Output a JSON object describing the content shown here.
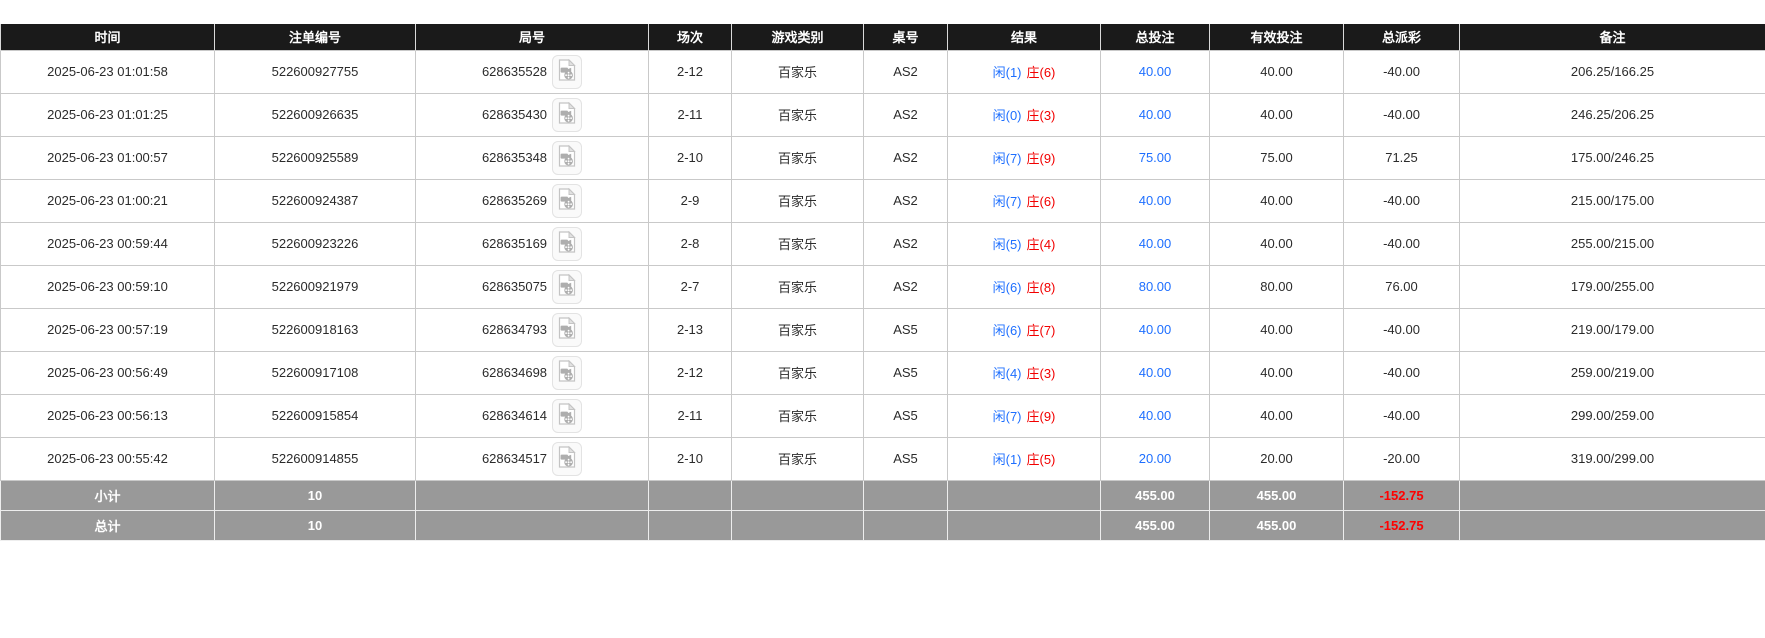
{
  "colors": {
    "header_bg": "#1a1a1a",
    "link_blue": "#1e6fff",
    "player_blue": "#1e6fff",
    "banker_red": "#f20000",
    "negative_red": "#f20000",
    "summary_bg": "#999999"
  },
  "icons": {
    "round_video": "video-file-icon"
  },
  "table": {
    "columns": [
      {
        "key": "time",
        "label": "时间"
      },
      {
        "key": "bet_id",
        "label": "注单编号"
      },
      {
        "key": "round_id",
        "label": "局号"
      },
      {
        "key": "session",
        "label": "场次"
      },
      {
        "key": "game_type",
        "label": "游戏类别"
      },
      {
        "key": "table_no",
        "label": "桌号"
      },
      {
        "key": "result",
        "label": "结果"
      },
      {
        "key": "total_bet",
        "label": "总投注"
      },
      {
        "key": "valid_bet",
        "label": "有效投注"
      },
      {
        "key": "total_payout",
        "label": "总派彩"
      },
      {
        "key": "remark",
        "label": "备注"
      }
    ],
    "rows": [
      {
        "time": "2025-06-23 01:01:58",
        "bet_id": "522600927755",
        "round_id": "628635528",
        "session": "2-12",
        "game_type": "百家乐",
        "table_no": "AS2",
        "result_player": "闲(1)",
        "result_banker": "庄(6)",
        "total_bet": "40.00",
        "valid_bet": "40.00",
        "total_payout": "-40.00",
        "remark": "206.25/166.25"
      },
      {
        "time": "2025-06-23 01:01:25",
        "bet_id": "522600926635",
        "round_id": "628635430",
        "session": "2-11",
        "game_type": "百家乐",
        "table_no": "AS2",
        "result_player": "闲(0)",
        "result_banker": "庄(3)",
        "total_bet": "40.00",
        "valid_bet": "40.00",
        "total_payout": "-40.00",
        "remark": "246.25/206.25"
      },
      {
        "time": "2025-06-23 01:00:57",
        "bet_id": "522600925589",
        "round_id": "628635348",
        "session": "2-10",
        "game_type": "百家乐",
        "table_no": "AS2",
        "result_player": "闲(7)",
        "result_banker": "庄(9)",
        "total_bet": "75.00",
        "valid_bet": "75.00",
        "total_payout": "71.25",
        "remark": "175.00/246.25"
      },
      {
        "time": "2025-06-23 01:00:21",
        "bet_id": "522600924387",
        "round_id": "628635269",
        "session": "2-9",
        "game_type": "百家乐",
        "table_no": "AS2",
        "result_player": "闲(7)",
        "result_banker": "庄(6)",
        "total_bet": "40.00",
        "valid_bet": "40.00",
        "total_payout": "-40.00",
        "remark": "215.00/175.00"
      },
      {
        "time": "2025-06-23 00:59:44",
        "bet_id": "522600923226",
        "round_id": "628635169",
        "session": "2-8",
        "game_type": "百家乐",
        "table_no": "AS2",
        "result_player": "闲(5)",
        "result_banker": "庄(4)",
        "total_bet": "40.00",
        "valid_bet": "40.00",
        "total_payout": "-40.00",
        "remark": "255.00/215.00"
      },
      {
        "time": "2025-06-23 00:59:10",
        "bet_id": "522600921979",
        "round_id": "628635075",
        "session": "2-7",
        "game_type": "百家乐",
        "table_no": "AS2",
        "result_player": "闲(6)",
        "result_banker": "庄(8)",
        "total_bet": "80.00",
        "valid_bet": "80.00",
        "total_payout": "76.00",
        "remark": "179.00/255.00"
      },
      {
        "time": "2025-06-23 00:57:19",
        "bet_id": "522600918163",
        "round_id": "628634793",
        "session": "2-13",
        "game_type": "百家乐",
        "table_no": "AS5",
        "result_player": "闲(6)",
        "result_banker": "庄(7)",
        "total_bet": "40.00",
        "valid_bet": "40.00",
        "total_payout": "-40.00",
        "remark": "219.00/179.00"
      },
      {
        "time": "2025-06-23 00:56:49",
        "bet_id": "522600917108",
        "round_id": "628634698",
        "session": "2-12",
        "game_type": "百家乐",
        "table_no": "AS5",
        "result_player": "闲(4)",
        "result_banker": "庄(3)",
        "total_bet": "40.00",
        "valid_bet": "40.00",
        "total_payout": "-40.00",
        "remark": "259.00/219.00"
      },
      {
        "time": "2025-06-23 00:56:13",
        "bet_id": "522600915854",
        "round_id": "628634614",
        "session": "2-11",
        "game_type": "百家乐",
        "table_no": "AS5",
        "result_player": "闲(7)",
        "result_banker": "庄(9)",
        "total_bet": "40.00",
        "valid_bet": "40.00",
        "total_payout": "-40.00",
        "remark": "299.00/259.00"
      },
      {
        "time": "2025-06-23 00:55:42",
        "bet_id": "522600914855",
        "round_id": "628634517",
        "session": "2-10",
        "game_type": "百家乐",
        "table_no": "AS5",
        "result_player": "闲(1)",
        "result_banker": "庄(5)",
        "total_bet": "20.00",
        "valid_bet": "20.00",
        "total_payout": "-20.00",
        "remark": "319.00/299.00"
      }
    ],
    "summary": [
      {
        "key": "subtotal",
        "label": "小计",
        "count": "10",
        "total_bet": "455.00",
        "valid_bet": "455.00",
        "total_payout": "-152.75"
      },
      {
        "key": "total",
        "label": "总计",
        "count": "10",
        "total_bet": "455.00",
        "valid_bet": "455.00",
        "total_payout": "-152.75"
      }
    ]
  }
}
